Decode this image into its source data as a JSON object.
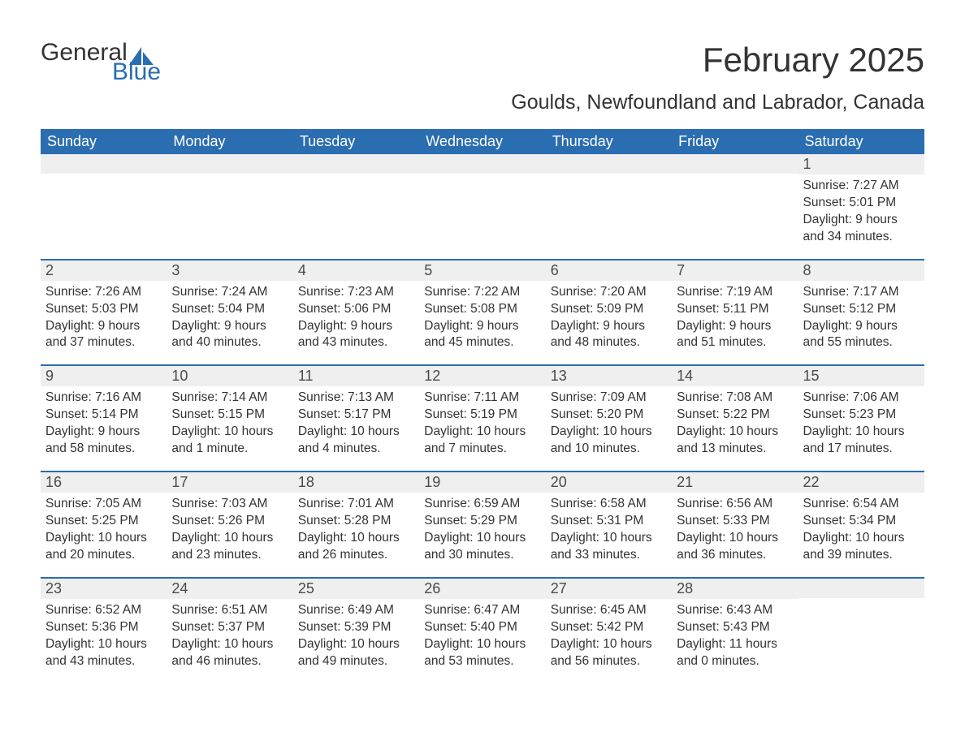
{
  "logo": {
    "line1": "General",
    "line2": "Blue"
  },
  "title": "February 2025",
  "subtitle": "Goulds, Newfoundland and Labrador, Canada",
  "colors": {
    "header_bg": "#2a6db0",
    "header_text": "#ffffff",
    "strip_bg": "#efefef",
    "body_text": "#333333",
    "logo_blue": "#2a6db0"
  },
  "fontsizes": {
    "title": 42,
    "subtitle": 25,
    "dayheader": 18,
    "daynum": 18,
    "detail": 15.5,
    "logo": 30
  },
  "day_headers": [
    "Sunday",
    "Monday",
    "Tuesday",
    "Wednesday",
    "Thursday",
    "Friday",
    "Saturday"
  ],
  "weeks": [
    [
      {
        "num": "",
        "sunrise": "",
        "sunset": "",
        "daylight": ""
      },
      {
        "num": "",
        "sunrise": "",
        "sunset": "",
        "daylight": ""
      },
      {
        "num": "",
        "sunrise": "",
        "sunset": "",
        "daylight": ""
      },
      {
        "num": "",
        "sunrise": "",
        "sunset": "",
        "daylight": ""
      },
      {
        "num": "",
        "sunrise": "",
        "sunset": "",
        "daylight": ""
      },
      {
        "num": "",
        "sunrise": "",
        "sunset": "",
        "daylight": ""
      },
      {
        "num": "1",
        "sunrise": "Sunrise: 7:27 AM",
        "sunset": "Sunset: 5:01 PM",
        "daylight": "Daylight: 9 hours and 34 minutes."
      }
    ],
    [
      {
        "num": "2",
        "sunrise": "Sunrise: 7:26 AM",
        "sunset": "Sunset: 5:03 PM",
        "daylight": "Daylight: 9 hours and 37 minutes."
      },
      {
        "num": "3",
        "sunrise": "Sunrise: 7:24 AM",
        "sunset": "Sunset: 5:04 PM",
        "daylight": "Daylight: 9 hours and 40 minutes."
      },
      {
        "num": "4",
        "sunrise": "Sunrise: 7:23 AM",
        "sunset": "Sunset: 5:06 PM",
        "daylight": "Daylight: 9 hours and 43 minutes."
      },
      {
        "num": "5",
        "sunrise": "Sunrise: 7:22 AM",
        "sunset": "Sunset: 5:08 PM",
        "daylight": "Daylight: 9 hours and 45 minutes."
      },
      {
        "num": "6",
        "sunrise": "Sunrise: 7:20 AM",
        "sunset": "Sunset: 5:09 PM",
        "daylight": "Daylight: 9 hours and 48 minutes."
      },
      {
        "num": "7",
        "sunrise": "Sunrise: 7:19 AM",
        "sunset": "Sunset: 5:11 PM",
        "daylight": "Daylight: 9 hours and 51 minutes."
      },
      {
        "num": "8",
        "sunrise": "Sunrise: 7:17 AM",
        "sunset": "Sunset: 5:12 PM",
        "daylight": "Daylight: 9 hours and 55 minutes."
      }
    ],
    [
      {
        "num": "9",
        "sunrise": "Sunrise: 7:16 AM",
        "sunset": "Sunset: 5:14 PM",
        "daylight": "Daylight: 9 hours and 58 minutes."
      },
      {
        "num": "10",
        "sunrise": "Sunrise: 7:14 AM",
        "sunset": "Sunset: 5:15 PM",
        "daylight": "Daylight: 10 hours and 1 minute."
      },
      {
        "num": "11",
        "sunrise": "Sunrise: 7:13 AM",
        "sunset": "Sunset: 5:17 PM",
        "daylight": "Daylight: 10 hours and 4 minutes."
      },
      {
        "num": "12",
        "sunrise": "Sunrise: 7:11 AM",
        "sunset": "Sunset: 5:19 PM",
        "daylight": "Daylight: 10 hours and 7 minutes."
      },
      {
        "num": "13",
        "sunrise": "Sunrise: 7:09 AM",
        "sunset": "Sunset: 5:20 PM",
        "daylight": "Daylight: 10 hours and 10 minutes."
      },
      {
        "num": "14",
        "sunrise": "Sunrise: 7:08 AM",
        "sunset": "Sunset: 5:22 PM",
        "daylight": "Daylight: 10 hours and 13 minutes."
      },
      {
        "num": "15",
        "sunrise": "Sunrise: 7:06 AM",
        "sunset": "Sunset: 5:23 PM",
        "daylight": "Daylight: 10 hours and 17 minutes."
      }
    ],
    [
      {
        "num": "16",
        "sunrise": "Sunrise: 7:05 AM",
        "sunset": "Sunset: 5:25 PM",
        "daylight": "Daylight: 10 hours and 20 minutes."
      },
      {
        "num": "17",
        "sunrise": "Sunrise: 7:03 AM",
        "sunset": "Sunset: 5:26 PM",
        "daylight": "Daylight: 10 hours and 23 minutes."
      },
      {
        "num": "18",
        "sunrise": "Sunrise: 7:01 AM",
        "sunset": "Sunset: 5:28 PM",
        "daylight": "Daylight: 10 hours and 26 minutes."
      },
      {
        "num": "19",
        "sunrise": "Sunrise: 6:59 AM",
        "sunset": "Sunset: 5:29 PM",
        "daylight": "Daylight: 10 hours and 30 minutes."
      },
      {
        "num": "20",
        "sunrise": "Sunrise: 6:58 AM",
        "sunset": "Sunset: 5:31 PM",
        "daylight": "Daylight: 10 hours and 33 minutes."
      },
      {
        "num": "21",
        "sunrise": "Sunrise: 6:56 AM",
        "sunset": "Sunset: 5:33 PM",
        "daylight": "Daylight: 10 hours and 36 minutes."
      },
      {
        "num": "22",
        "sunrise": "Sunrise: 6:54 AM",
        "sunset": "Sunset: 5:34 PM",
        "daylight": "Daylight: 10 hours and 39 minutes."
      }
    ],
    [
      {
        "num": "23",
        "sunrise": "Sunrise: 6:52 AM",
        "sunset": "Sunset: 5:36 PM",
        "daylight": "Daylight: 10 hours and 43 minutes."
      },
      {
        "num": "24",
        "sunrise": "Sunrise: 6:51 AM",
        "sunset": "Sunset: 5:37 PM",
        "daylight": "Daylight: 10 hours and 46 minutes."
      },
      {
        "num": "25",
        "sunrise": "Sunrise: 6:49 AM",
        "sunset": "Sunset: 5:39 PM",
        "daylight": "Daylight: 10 hours and 49 minutes."
      },
      {
        "num": "26",
        "sunrise": "Sunrise: 6:47 AM",
        "sunset": "Sunset: 5:40 PM",
        "daylight": "Daylight: 10 hours and 53 minutes."
      },
      {
        "num": "27",
        "sunrise": "Sunrise: 6:45 AM",
        "sunset": "Sunset: 5:42 PM",
        "daylight": "Daylight: 10 hours and 56 minutes."
      },
      {
        "num": "28",
        "sunrise": "Sunrise: 6:43 AM",
        "sunset": "Sunset: 5:43 PM",
        "daylight": "Daylight: 11 hours and 0 minutes."
      },
      {
        "num": "",
        "sunrise": "",
        "sunset": "",
        "daylight": ""
      }
    ]
  ]
}
